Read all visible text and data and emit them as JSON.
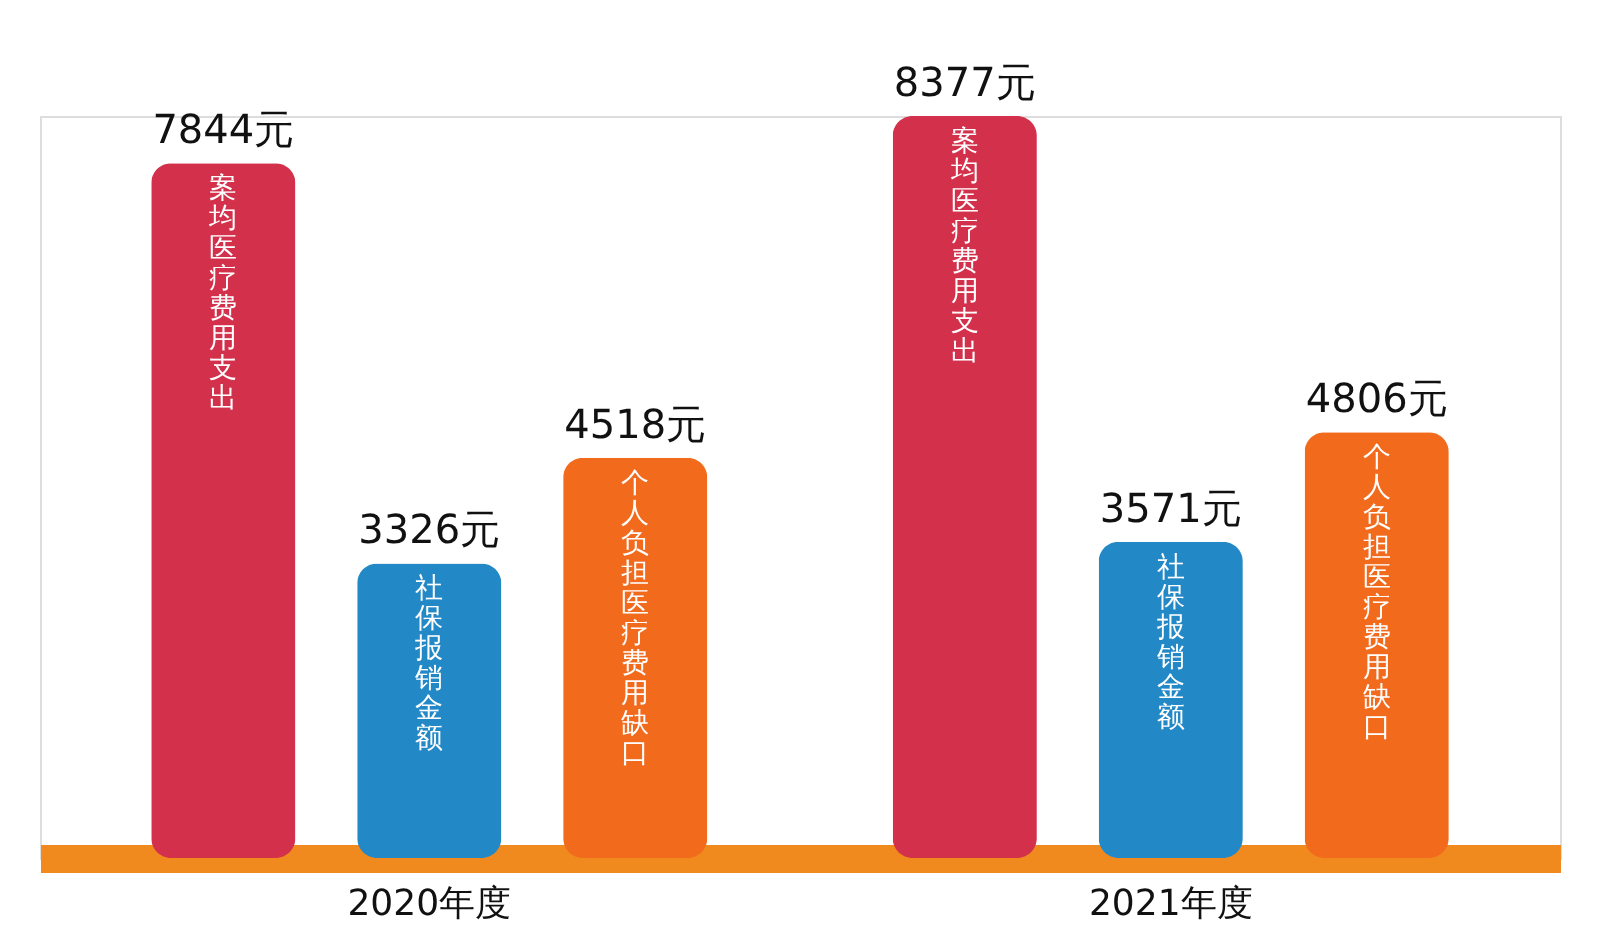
{
  "chart_data": {
    "type": "bar",
    "categories": [
      "2020年度",
      "2021年度"
    ],
    "series": [
      {
        "name": "案均医疗费用支出",
        "color": "#d3304c",
        "values": [
          7844,
          8377
        ],
        "value_labels": [
          "7844元",
          "8377元"
        ]
      },
      {
        "name": "社保报销金额",
        "color": "#2389c6",
        "values": [
          3326,
          3571
        ],
        "value_labels": [
          "3326元",
          "3571元"
        ]
      },
      {
        "name": "个人负担医疗费用缺口",
        "color": "#f26a1c",
        "values": [
          4518,
          4806
        ],
        "value_labels": [
          "4518元",
          "4806元"
        ]
      }
    ],
    "grid": false,
    "legend": false
  }
}
